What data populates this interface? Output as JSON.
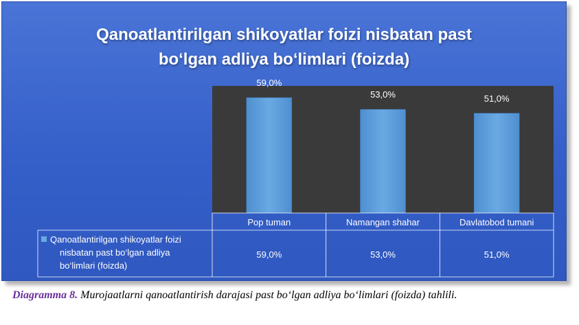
{
  "chart_data": {
    "type": "bar",
    "title_lines": [
      "Qanoatlantirilgan shikoyatlar foizi nisbatan past",
      "bo‘lgan adliya bo‘limlari (foizda)"
    ],
    "categories": [
      "Pop tuman",
      "Namangan shahar",
      "Davlatobod tumani"
    ],
    "series": [
      {
        "name_lines": [
          "Qanoatlantirilgan shikoyatlar foizi",
          "nisbatan past bo‘lgan adliya",
          "bo‘limlari (foizda)"
        ],
        "values": [
          59.0,
          53.0,
          51.0
        ],
        "value_labels": [
          "59,0%",
          "53,0%",
          "51,0%"
        ]
      }
    ],
    "ylim": [
      0,
      65
    ],
    "grid": false,
    "data_table": true,
    "colors": {
      "background": "#3560c9",
      "plot_area": "#3a3a3a",
      "bar": "#5b9bd5",
      "text": "#ffffff"
    }
  },
  "caption": {
    "label": "Diagramma 8.",
    "text": " Murojaatlarni qanoatlantirish darajasi past bo‘lgan adliya bo‘limlari (foizda) tahlili."
  }
}
